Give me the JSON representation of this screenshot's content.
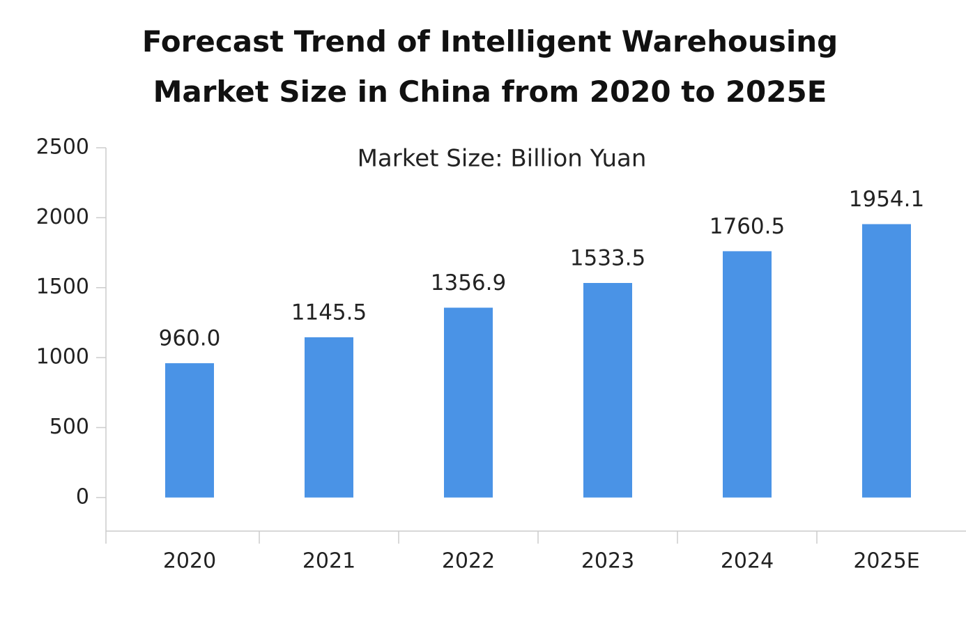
{
  "chart_data": {
    "type": "bar",
    "title": "Forecast Trend of Intelligent Warehousing Market Size in China from 2020 to 2025E",
    "subtitle": "Market Size: Billion Yuan",
    "categories": [
      "2020",
      "2021",
      "2022",
      "2023",
      "2024",
      "2025E"
    ],
    "values": [
      960.0,
      1145.5,
      1356.9,
      1533.5,
      1760.5,
      1954.1
    ],
    "value_labels": [
      "960.0",
      "1145.5",
      "1356.9",
      "1533.5",
      "1760.5",
      "1954.1"
    ],
    "color": "#4a93e6",
    "ylim": [
      -240,
      2500
    ],
    "yticks": [
      0,
      500,
      1000,
      1500,
      2000,
      2500
    ],
    "grid": false
  }
}
